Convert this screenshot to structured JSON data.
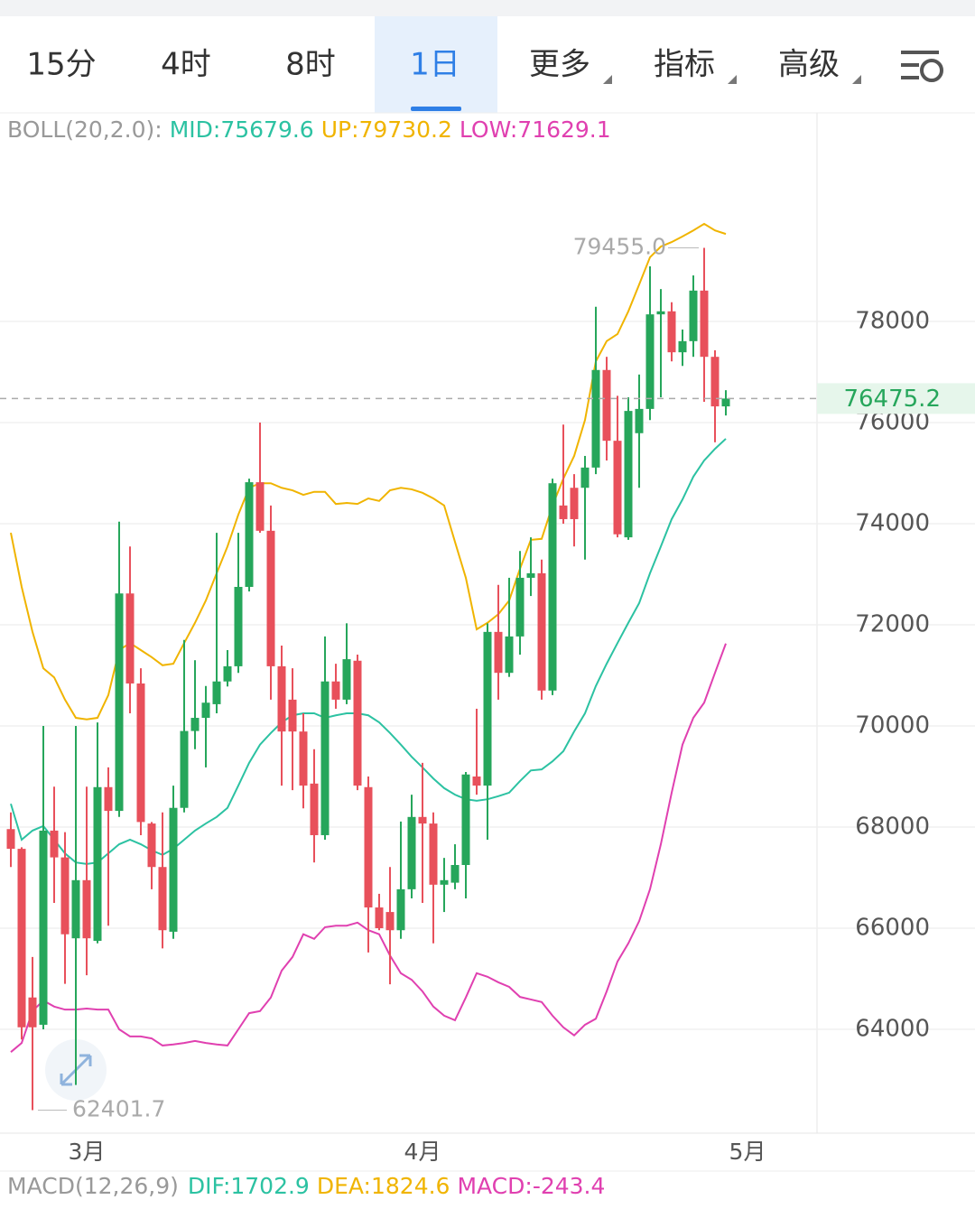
{
  "tabs": {
    "items": [
      "15分",
      "4时",
      "8时",
      "1日",
      "更多",
      "指标",
      "高级"
    ],
    "active": 3
  },
  "chart_data": {
    "type": "candlestick",
    "indicator": "BOLL(20,2.0):",
    "categories": [
      null,
      null,
      null,
      null,
      null,
      null,
      null,
      "3月",
      null,
      null,
      null,
      null,
      null,
      null,
      null,
      null,
      null,
      null,
      null,
      null,
      null,
      null,
      null,
      null,
      null,
      null,
      null,
      null,
      null,
      null,
      null,
      null,
      null,
      null,
      null,
      null,
      null,
      null,
      "4月",
      null,
      null,
      null,
      null,
      null,
      null,
      null,
      null,
      null,
      null,
      null,
      null,
      null,
      null,
      null,
      null,
      null,
      null,
      null,
      null,
      null,
      null,
      null,
      null,
      null,
      null,
      null,
      null,
      null,
      "5月"
    ],
    "open": [
      67960,
      67570,
      64630,
      64090,
      67930,
      67400,
      65800,
      66950,
      65750,
      68790,
      68320,
      72620,
      70840,
      68070,
      67210,
      65930,
      68380,
      69900,
      70160,
      70430,
      70880,
      71180,
      72750,
      74820,
      73860,
      71180,
      70520,
      69890,
      68860,
      67840,
      70880,
      70520,
      71290,
      68790,
      66410,
      66320,
      65960,
      66770,
      68200,
      68070,
      66860,
      66900,
      67250,
      69000,
      68820,
      71860,
      71050,
      71770,
      72930,
      73020,
      70700,
      74360,
      74710,
      74710,
      75110,
      77040,
      75640,
      73730,
      75790,
      76270,
      78140,
      78200,
      77390,
      77610,
      78610,
      77300,
      76320,
      null,
      null
    ],
    "high": [
      68290,
      67600,
      65430,
      70000,
      68800,
      67900,
      70000,
      68800,
      70070,
      69180,
      74040,
      73550,
      71140,
      68100,
      68290,
      68820,
      71700,
      71300,
      70790,
      73820,
      71500,
      73820,
      74890,
      76000,
      74360,
      71590,
      71140,
      70250,
      69540,
      71770,
      71230,
      72030,
      71410,
      69000,
      66680,
      67210,
      68110,
      68640,
      69270,
      68290,
      67390,
      67660,
      69090,
      70340,
      72030,
      72790,
      72930,
      73460,
      73730,
      73290,
      74890,
      75960,
      74980,
      75340,
      78290,
      77300,
      76530,
      76500,
      76950,
      79090,
      78640,
      78380,
      77840,
      78910,
      79455,
      77430,
      76640,
      null,
      null
    ],
    "low": [
      67210,
      63800,
      62401.7,
      64000,
      66500,
      64900,
      62900,
      65070,
      65700,
      66050,
      68200,
      70250,
      67840,
      66770,
      65600,
      65790,
      68290,
      69540,
      69180,
      70250,
      70780,
      71050,
      72660,
      73820,
      70520,
      68820,
      68730,
      68370,
      67300,
      67750,
      70340,
      70430,
      68730,
      65520,
      65960,
      64890,
      65790,
      66590,
      66500,
      65700,
      66320,
      66770,
      66590,
      68640,
      67750,
      70520,
      70970,
      71410,
      72570,
      70520,
      70610,
      74000,
      73550,
      73290,
      74980,
      75250,
      73730,
      73680,
      74710,
      76050,
      76500,
      77210,
      77120,
      77300,
      76410,
      75610,
      76140,
      null,
      null
    ],
    "close": [
      67570,
      64040,
      64040,
      67930,
      67400,
      65880,
      66950,
      65800,
      68790,
      68320,
      72620,
      70840,
      68100,
      67210,
      65960,
      68380,
      69900,
      70160,
      70460,
      70880,
      71180,
      72750,
      74820,
      73860,
      71180,
      69890,
      69890,
      68820,
      67840,
      70880,
      70520,
      71320,
      68820,
      66410,
      66000,
      65960,
      66770,
      68200,
      68070,
      66860,
      66950,
      67250,
      69040,
      68820,
      71860,
      71050,
      71770,
      72930,
      73020,
      70700,
      74800,
      74090,
      74090,
      75110,
      77040,
      75640,
      73790,
      76230,
      76270,
      78140,
      78200,
      77390,
      77610,
      78610,
      77300,
      76320,
      76475.2,
      null,
      null
    ],
    "up_color": "#26a65b",
    "down_color": "#e8505b",
    "series": [
      {
        "name": "MID:75679.6",
        "color": "#2cc2a2",
        "values": [
          68460,
          67750,
          67930,
          68020,
          67750,
          67480,
          67300,
          67270,
          67300,
          67480,
          67660,
          67750,
          67660,
          67540,
          67450,
          67570,
          67750,
          67930,
          68070,
          68200,
          68380,
          68820,
          69270,
          69630,
          69860,
          70070,
          70210,
          70250,
          70250,
          70160,
          70210,
          70250,
          70250,
          70210,
          70070,
          69860,
          69630,
          69390,
          69180,
          68960,
          68770,
          68640,
          68550,
          68520,
          68550,
          68610,
          68680,
          68910,
          69120,
          69140,
          69300,
          69500,
          69890,
          70250,
          70790,
          71230,
          71640,
          72040,
          72430,
          73020,
          73550,
          74090,
          74480,
          74930,
          75250,
          75480,
          75680,
          null,
          null
        ]
      },
      {
        "name": "UP:79730.2",
        "color": "#f0b400",
        "values": [
          73820,
          72750,
          71860,
          71140,
          70960,
          70520,
          70160,
          70130,
          70160,
          70610,
          71500,
          71640,
          71500,
          71360,
          71200,
          71230,
          71640,
          72040,
          72480,
          73020,
          73550,
          74180,
          74710,
          74800,
          74800,
          74710,
          74660,
          74570,
          74630,
          74630,
          74390,
          74410,
          74390,
          74500,
          74450,
          74660,
          74710,
          74680,
          74610,
          74500,
          74360,
          73640,
          72930,
          71910,
          72040,
          72210,
          72480,
          73110,
          73680,
          73700,
          74360,
          74890,
          75340,
          76050,
          77210,
          77610,
          77750,
          78200,
          78730,
          79270,
          79480,
          79570,
          79680,
          79800,
          79930,
          79800,
          79730,
          null,
          null
        ]
      },
      {
        "name": "LOW:71629.1",
        "color": "#e040b0",
        "values": [
          63550,
          63730,
          64360,
          64570,
          64450,
          64390,
          64390,
          64410,
          64390,
          64390,
          64000,
          63860,
          63860,
          63820,
          63680,
          63700,
          63730,
          63770,
          63730,
          63700,
          63680,
          64000,
          64320,
          64360,
          64630,
          65160,
          65430,
          65880,
          65790,
          66020,
          66050,
          66050,
          66110,
          65960,
          65880,
          65460,
          65110,
          64980,
          64750,
          64450,
          64270,
          64180,
          64630,
          65110,
          65040,
          64930,
          64840,
          64640,
          64590,
          64540,
          64270,
          64040,
          63880,
          64090,
          64210,
          64750,
          65340,
          65700,
          66140,
          66770,
          67660,
          68680,
          69630,
          70160,
          70460,
          71050,
          71630,
          null,
          null
        ]
      }
    ],
    "ylim": [
      62000,
      82000
    ],
    "yticks": [
      64000,
      66000,
      68000,
      70000,
      72000,
      74000,
      76000,
      78000
    ],
    "grid": true,
    "last_price": 76475.2,
    "max_label": {
      "value": 79455,
      "label": "79455.0"
    },
    "min_label": 62401.7,
    "macd": {
      "title": "MACD(12,26,9)",
      "items": [
        "DIF:1702.9",
        "DEA:1824.6",
        "MACD:-243.4"
      ],
      "colors": [
        "#2cc2a2",
        "#f0b400",
        "#e040b0"
      ]
    }
  }
}
